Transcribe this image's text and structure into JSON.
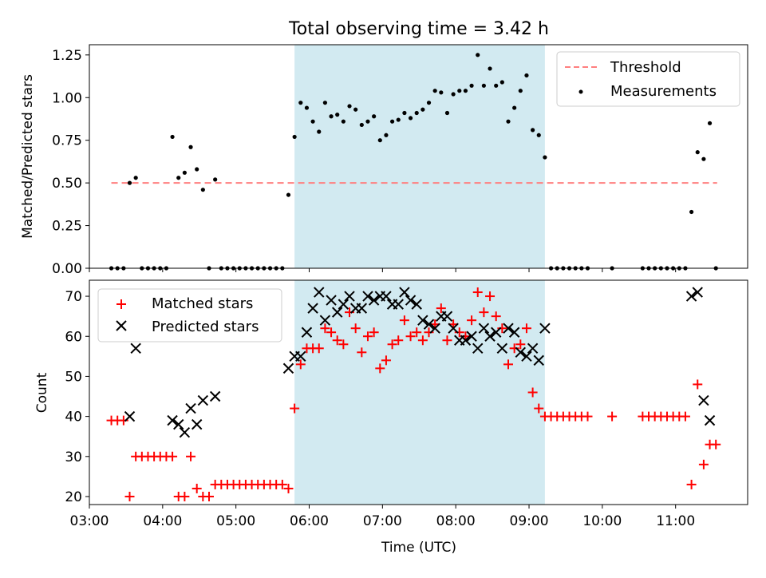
{
  "title": "Total observing time = 3.42 h",
  "colors": {
    "threshold": "#ff7f7f",
    "measurements": "#000000",
    "matched": "#ff0000",
    "predicted": "#000000",
    "span": "#add8e6"
  },
  "chart_data": [
    {
      "type": "scatter",
      "ylabel": "Matched/Predicted stars",
      "ylim": [
        0,
        1.31
      ],
      "xlim": [
        "03:00",
        "11:59"
      ],
      "yticks": [
        "0.00",
        "0.25",
        "0.50",
        "0.75",
        "1.00",
        "1.25"
      ],
      "span": [
        "05:48",
        "09:13"
      ],
      "legend": {
        "position": "top-right",
        "entries": [
          "Threshold",
          "Measurements"
        ]
      },
      "series": [
        {
          "name": "Threshold",
          "kind": "dashed-line",
          "points": [
            [
              "03:18",
              0.5
            ],
            [
              "11:34",
              0.5
            ]
          ]
        },
        {
          "name": "Measurements",
          "kind": "dots",
          "points": [
            [
              "03:18",
              0
            ],
            [
              "03:23",
              0
            ],
            [
              "03:28",
              0
            ],
            [
              "03:33",
              0.5
            ],
            [
              "03:38",
              0.53
            ],
            [
              "03:43",
              0
            ],
            [
              "03:48",
              0
            ],
            [
              "03:53",
              0
            ],
            [
              "03:58",
              0
            ],
            [
              "04:03",
              0
            ],
            [
              "04:08",
              0.77
            ],
            [
              "04:13",
              0.53
            ],
            [
              "04:18",
              0.56
            ],
            [
              "04:23",
              0.71
            ],
            [
              "04:28",
              0.58
            ],
            [
              "04:33",
              0.46
            ],
            [
              "04:38",
              0
            ],
            [
              "04:43",
              0.52
            ],
            [
              "04:48",
              0
            ],
            [
              "04:53",
              0
            ],
            [
              "04:58",
              0
            ],
            [
              "05:03",
              0
            ],
            [
              "05:08",
              0
            ],
            [
              "05:13",
              0
            ],
            [
              "05:18",
              0
            ],
            [
              "05:23",
              0
            ],
            [
              "05:28",
              0
            ],
            [
              "05:33",
              0
            ],
            [
              "05:38",
              0
            ],
            [
              "05:43",
              0.43
            ],
            [
              "05:48",
              0.77
            ],
            [
              "05:53",
              0.97
            ],
            [
              "05:58",
              0.94
            ],
            [
              "06:03",
              0.86
            ],
            [
              "06:08",
              0.8
            ],
            [
              "06:13",
              0.97
            ],
            [
              "06:18",
              0.89
            ],
            [
              "06:23",
              0.9
            ],
            [
              "06:28",
              0.86
            ],
            [
              "06:33",
              0.95
            ],
            [
              "06:38",
              0.93
            ],
            [
              "06:43",
              0.84
            ],
            [
              "06:48",
              0.86
            ],
            [
              "06:53",
              0.89
            ],
            [
              "06:58",
              0.75
            ],
            [
              "07:03",
              0.78
            ],
            [
              "07:08",
              0.86
            ],
            [
              "07:13",
              0.87
            ],
            [
              "07:18",
              0.91
            ],
            [
              "07:23",
              0.88
            ],
            [
              "07:28",
              0.91
            ],
            [
              "07:33",
              0.93
            ],
            [
              "07:38",
              0.97
            ],
            [
              "07:43",
              1.04
            ],
            [
              "07:48",
              1.03
            ],
            [
              "07:53",
              0.91
            ],
            [
              "07:58",
              1.02
            ],
            [
              "08:03",
              1.04
            ],
            [
              "08:08",
              1.04
            ],
            [
              "08:13",
              1.07
            ],
            [
              "08:18",
              1.25
            ],
            [
              "08:23",
              1.07
            ],
            [
              "08:28",
              1.17
            ],
            [
              "08:33",
              1.07
            ],
            [
              "08:38",
              1.09
            ],
            [
              "08:43",
              0.86
            ],
            [
              "08:48",
              0.94
            ],
            [
              "08:53",
              1.04
            ],
            [
              "08:58",
              1.13
            ],
            [
              "09:03",
              0.81
            ],
            [
              "09:08",
              0.78
            ],
            [
              "09:13",
              0.65
            ],
            [
              "09:18",
              0
            ],
            [
              "09:23",
              0
            ],
            [
              "09:28",
              0
            ],
            [
              "09:33",
              0
            ],
            [
              "09:38",
              0
            ],
            [
              "09:43",
              0
            ],
            [
              "09:48",
              0
            ],
            [
              "10:08",
              0
            ],
            [
              "10:33",
              0
            ],
            [
              "10:38",
              0
            ],
            [
              "10:43",
              0
            ],
            [
              "10:48",
              0
            ],
            [
              "10:53",
              0
            ],
            [
              "10:58",
              0
            ],
            [
              "11:03",
              0
            ],
            [
              "11:08",
              0
            ],
            [
              "11:13",
              0.33
            ],
            [
              "11:18",
              0.68
            ],
            [
              "11:23",
              0.64
            ],
            [
              "11:28",
              0.85
            ],
            [
              "11:33",
              0
            ]
          ]
        }
      ]
    },
    {
      "type": "scatter",
      "xlabel": "Time (UTC)",
      "ylabel": "Count",
      "ylim": [
        18,
        74
      ],
      "xlim": [
        "03:00",
        "11:59"
      ],
      "xticks": [
        "03:00",
        "04:00",
        "05:00",
        "06:00",
        "07:00",
        "08:00",
        "09:00",
        "10:00",
        "11:00"
      ],
      "yticks": [
        "20",
        "30",
        "40",
        "50",
        "60",
        "70"
      ],
      "span": [
        "05:48",
        "09:13"
      ],
      "legend": {
        "position": "top-left",
        "entries": [
          "Matched stars",
          "Predicted stars"
        ]
      },
      "series": [
        {
          "name": "Matched stars",
          "kind": "plus",
          "points": [
            [
              "03:18",
              39
            ],
            [
              "03:23",
              39
            ],
            [
              "03:28",
              39
            ],
            [
              "03:33",
              20
            ],
            [
              "03:38",
              30
            ],
            [
              "03:43",
              30
            ],
            [
              "03:48",
              30
            ],
            [
              "03:53",
              30
            ],
            [
              "03:58",
              30
            ],
            [
              "04:03",
              30
            ],
            [
              "04:08",
              30
            ],
            [
              "04:13",
              20
            ],
            [
              "04:18",
              20
            ],
            [
              "04:23",
              30
            ],
            [
              "04:28",
              22
            ],
            [
              "04:33",
              20
            ],
            [
              "04:38",
              20
            ],
            [
              "04:43",
              23
            ],
            [
              "04:48",
              23
            ],
            [
              "04:53",
              23
            ],
            [
              "04:58",
              23
            ],
            [
              "05:03",
              23
            ],
            [
              "05:08",
              23
            ],
            [
              "05:13",
              23
            ],
            [
              "05:18",
              23
            ],
            [
              "05:23",
              23
            ],
            [
              "05:28",
              23
            ],
            [
              "05:33",
              23
            ],
            [
              "05:38",
              23
            ],
            [
              "05:43",
              22
            ],
            [
              "05:48",
              42
            ],
            [
              "05:53",
              53
            ],
            [
              "05:58",
              57
            ],
            [
              "06:03",
              57
            ],
            [
              "06:08",
              57
            ],
            [
              "06:13",
              62
            ],
            [
              "06:18",
              61
            ],
            [
              "06:23",
              59
            ],
            [
              "06:28",
              58
            ],
            [
              "06:33",
              66
            ],
            [
              "06:38",
              62
            ],
            [
              "06:43",
              56
            ],
            [
              "06:48",
              60
            ],
            [
              "06:53",
              61
            ],
            [
              "06:58",
              52
            ],
            [
              "07:03",
              54
            ],
            [
              "07:08",
              58
            ],
            [
              "07:13",
              59
            ],
            [
              "07:18",
              64
            ],
            [
              "07:23",
              60
            ],
            [
              "07:28",
              61
            ],
            [
              "07:33",
              59
            ],
            [
              "07:38",
              61
            ],
            [
              "07:43",
              63
            ],
            [
              "07:48",
              67
            ],
            [
              "07:53",
              59
            ],
            [
              "07:58",
              63
            ],
            [
              "08:03",
              61
            ],
            [
              "08:08",
              60
            ],
            [
              "08:13",
              64
            ],
            [
              "08:18",
              71
            ],
            [
              "08:23",
              66
            ],
            [
              "08:28",
              70
            ],
            [
              "08:33",
              65
            ],
            [
              "08:38",
              62
            ],
            [
              "08:43",
              53
            ],
            [
              "08:48",
              57
            ],
            [
              "08:53",
              58
            ],
            [
              "08:58",
              62
            ],
            [
              "09:03",
              46
            ],
            [
              "09:08",
              42
            ],
            [
              "09:13",
              40
            ],
            [
              "09:18",
              40
            ],
            [
              "09:23",
              40
            ],
            [
              "09:28",
              40
            ],
            [
              "09:33",
              40
            ],
            [
              "09:38",
              40
            ],
            [
              "09:43",
              40
            ],
            [
              "09:48",
              40
            ],
            [
              "10:08",
              40
            ],
            [
              "10:33",
              40
            ],
            [
              "10:38",
              40
            ],
            [
              "10:43",
              40
            ],
            [
              "10:48",
              40
            ],
            [
              "10:53",
              40
            ],
            [
              "10:58",
              40
            ],
            [
              "11:03",
              40
            ],
            [
              "11:08",
              40
            ],
            [
              "11:13",
              23
            ],
            [
              "11:18",
              48
            ],
            [
              "11:23",
              28
            ],
            [
              "11:28",
              33
            ],
            [
              "11:33",
              33
            ]
          ]
        },
        {
          "name": "Predicted stars",
          "kind": "x",
          "points": [
            [
              "03:33",
              40
            ],
            [
              "03:38",
              57
            ],
            [
              "04:08",
              39
            ],
            [
              "04:13",
              38
            ],
            [
              "04:18",
              36
            ],
            [
              "04:23",
              42
            ],
            [
              "04:28",
              38
            ],
            [
              "04:33",
              44
            ],
            [
              "04:43",
              45
            ],
            [
              "05:43",
              52
            ],
            [
              "05:48",
              55
            ],
            [
              "05:53",
              55
            ],
            [
              "05:58",
              61
            ],
            [
              "06:03",
              67
            ],
            [
              "06:08",
              71
            ],
            [
              "06:13",
              64
            ],
            [
              "06:18",
              69
            ],
            [
              "06:23",
              66
            ],
            [
              "06:28",
              68
            ],
            [
              "06:33",
              70
            ],
            [
              "06:38",
              67
            ],
            [
              "06:43",
              67
            ],
            [
              "06:48",
              70
            ],
            [
              "06:53",
              69
            ],
            [
              "06:58",
              70
            ],
            [
              "07:03",
              70
            ],
            [
              "07:08",
              68
            ],
            [
              "07:13",
              68
            ],
            [
              "07:18",
              71
            ],
            [
              "07:23",
              69
            ],
            [
              "07:28",
              68
            ],
            [
              "07:33",
              64
            ],
            [
              "07:38",
              63
            ],
            [
              "07:43",
              62
            ],
            [
              "07:48",
              65
            ],
            [
              "07:53",
              65
            ],
            [
              "07:58",
              62
            ],
            [
              "08:03",
              59
            ],
            [
              "08:08",
              59
            ],
            [
              "08:13",
              60
            ],
            [
              "08:18",
              57
            ],
            [
              "08:23",
              62
            ],
            [
              "08:28",
              60
            ],
            [
              "08:33",
              61
            ],
            [
              "08:38",
              57
            ],
            [
              "08:43",
              62
            ],
            [
              "08:48",
              61
            ],
            [
              "08:53",
              56
            ],
            [
              "08:58",
              55
            ],
            [
              "09:03",
              57
            ],
            [
              "09:08",
              54
            ],
            [
              "09:13",
              62
            ],
            [
              "11:13",
              70
            ],
            [
              "11:18",
              71
            ],
            [
              "11:23",
              44
            ],
            [
              "11:28",
              39
            ]
          ]
        }
      ]
    }
  ]
}
